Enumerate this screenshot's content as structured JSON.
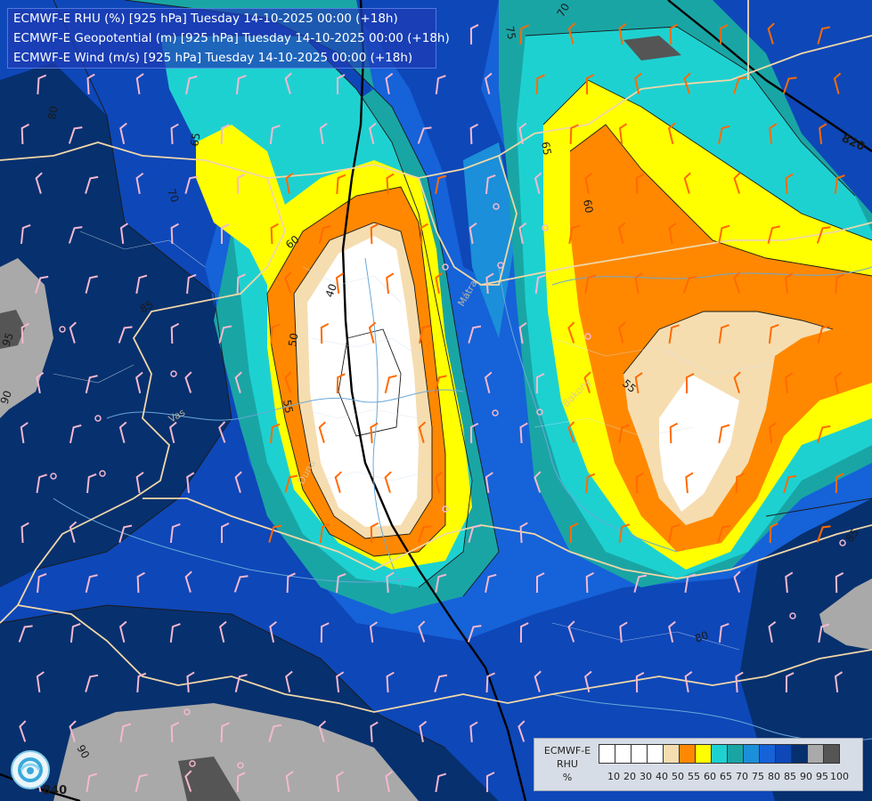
{
  "titles": [
    "ECMWF-E RHU (%) [925 hPa] Tuesday 14-10-2025 00:00 (+18h)",
    "ECMWF-E Geopotential (m) [925 hPa] Tuesday 14-10-2025 00:00 (+18h)",
    "ECMWF-E Wind (m/s) [925 hPa] Tuesday 14-10-2025 00:00 (+18h)"
  ],
  "legend": {
    "label_line1": "ECMWF-E",
    "label_line2": "RHU",
    "label_line3": "%",
    "ticks": [
      "10",
      "20",
      "30",
      "40",
      "50",
      "55",
      "60",
      "65",
      "70",
      "75",
      "80",
      "85",
      "90",
      "95",
      "100"
    ],
    "colors": [
      "#ffffff",
      "#ffffff",
      "#ffffff",
      "#ffffff",
      "#f6ddb0",
      "#ff8800",
      "#ffff00",
      "#1ed1d1",
      "#1aa5a5",
      "#1b8fd9",
      "#1662d8",
      "#0e47b8",
      "#07306e",
      "#a9a9a9",
      "#555555"
    ]
  },
  "contour_labels": {
    "rhu": [
      "75",
      "70",
      "80",
      "65",
      "70",
      "60",
      "40",
      "50",
      "55",
      "65",
      "60",
      "55",
      "85",
      "95",
      "90",
      "80",
      "85",
      "90"
    ],
    "geopotential": [
      "820",
      "840"
    ]
  },
  "place_labels": [
    "Bakony",
    "Vas",
    "Duna",
    "Mátra"
  ],
  "colors": {
    "sea": "#0b3a7a",
    "border": "#f0d7a8",
    "river": "#6aa8d8",
    "contour": "#1a1a1a",
    "geopotential": "#000000",
    "barb_warm": "#ff6a00",
    "barb_cool": "#f4b8d0"
  },
  "logo": "ecmwf-logo-icon"
}
